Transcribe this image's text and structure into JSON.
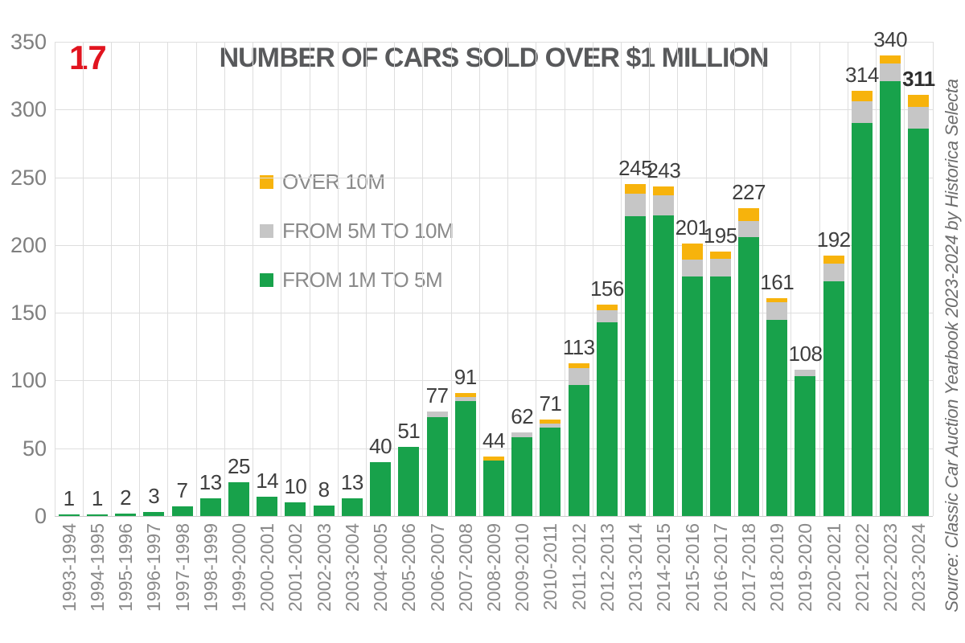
{
  "page": {
    "corner_number": "17"
  },
  "title": "NUMBER OF CARS SOLD OVER $1 MILLION",
  "source_note": "Source: Classic Car Auction Yearbook 2023-2024 by Historica Selecta",
  "colors": {
    "green": "#18a24b",
    "gray": "#c6c6c6",
    "yellow": "#f7b30c",
    "grid": "#dedede",
    "axis_text": "#7f7f7f",
    "value_text": "#3f3f3f",
    "title_text": "#58595b",
    "corner_red": "#e1141f"
  },
  "legend": [
    {
      "key": "over-10m",
      "label": "OVER 10M",
      "color": "#f7b30c"
    },
    {
      "key": "from-5m-to-10m",
      "label": "FROM 5M TO 10M",
      "color": "#c6c6c6"
    },
    {
      "key": "from-1m-to-5m",
      "label": "FROM 1M TO 5M",
      "color": "#18a24b"
    }
  ],
  "chart_data": {
    "type": "bar",
    "stacked": true,
    "title": "NUMBER OF CARS SOLD OVER $1 MILLION",
    "xlabel": "",
    "ylabel": "",
    "ylim": [
      0,
      350
    ],
    "y_ticks": [
      0,
      50,
      100,
      150,
      200,
      250,
      300,
      350
    ],
    "grid": true,
    "legend_position": "inside-upper-left",
    "categories": [
      "1993-1994",
      "1994-1995",
      "1995-1996",
      "1996-1997",
      "1997-1998",
      "1998-1999",
      "1999-2000",
      "2000-2001",
      "2001-2002",
      "2002-2003",
      "2003-2004",
      "2004-2005",
      "2005-2006",
      "2006-2007",
      "2007-2008",
      "2008-2009",
      "2009-2010",
      "2010-2011",
      "2011-2012",
      "2012-2013",
      "2013-2014",
      "2014-2015",
      "2015-2016",
      "2016-2017",
      "2017-2018",
      "2018-2019",
      "2019-2020",
      "2020-2021",
      "2021-2022",
      "2022-2023",
      "2023-2024"
    ],
    "series": [
      {
        "key": "from-1m-to-5m",
        "name": "FROM 1M TO 5M",
        "color": "#18a24b",
        "values": [
          1,
          1,
          2,
          3,
          7,
          13,
          25,
          14,
          10,
          8,
          13,
          40,
          51,
          73,
          85,
          41,
          58,
          65,
          97,
          143,
          221,
          222,
          177,
          177,
          206,
          145,
          103,
          173,
          290,
          321,
          286
        ]
      },
      {
        "key": "from-5m-to-10m",
        "name": "FROM 5M TO 10M",
        "color": "#c6c6c6",
        "values": [
          0,
          0,
          0,
          0,
          0,
          0,
          0,
          0,
          0,
          0,
          0,
          0,
          0,
          4,
          3,
          0,
          4,
          3,
          12,
          9,
          17,
          15,
          12,
          13,
          12,
          13,
          5,
          13,
          16,
          13,
          16
        ]
      },
      {
        "key": "over-10m",
        "name": "OVER 10M",
        "color": "#f7b30c",
        "values": [
          0,
          0,
          0,
          0,
          0,
          0,
          0,
          0,
          0,
          0,
          0,
          0,
          0,
          0,
          3,
          3,
          0,
          3,
          4,
          4,
          7,
          6,
          12,
          5,
          9,
          3,
          0,
          6,
          8,
          6,
          9
        ]
      }
    ],
    "totals": [
      1,
      1,
      2,
      3,
      7,
      13,
      25,
      14,
      10,
      8,
      13,
      40,
      51,
      77,
      91,
      44,
      62,
      71,
      113,
      156,
      245,
      243,
      201,
      195,
      227,
      161,
      108,
      192,
      314,
      340,
      311
    ],
    "bold_total_index": 30
  }
}
